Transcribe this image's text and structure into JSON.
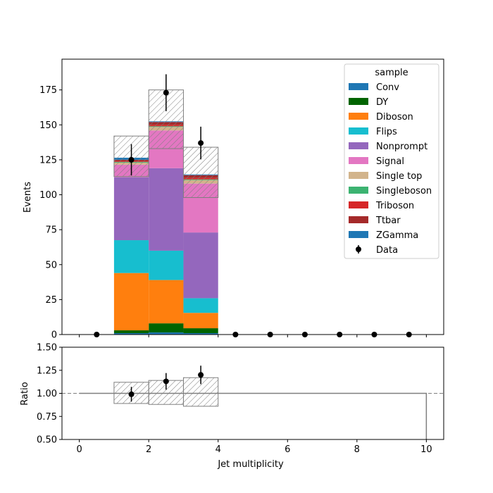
{
  "chart_data": [
    {
      "type": "bar",
      "stacked": true,
      "xlabel": "",
      "ylabel": "Events",
      "xlim": [
        -0.5,
        10.5
      ],
      "ylim": [
        0,
        197
      ],
      "bin_edges": [
        0,
        1,
        2,
        3,
        4,
        5,
        6,
        7,
        8,
        9,
        10
      ],
      "x_ticks": [
        0,
        2,
        4,
        6,
        8,
        10
      ],
      "y_ticks": [
        0,
        25,
        50,
        75,
        100,
        125,
        150,
        175
      ],
      "series": [
        {
          "name": "Conv",
          "color": "#1f77b4",
          "values": [
            0,
            1,
            1.5,
            1,
            0,
            0,
            0,
            0,
            0,
            0
          ]
        },
        {
          "name": "DY",
          "color": "#006400",
          "values": [
            0,
            2,
            6.5,
            3.5,
            0,
            0,
            0,
            0,
            0,
            0
          ]
        },
        {
          "name": "Diboson",
          "color": "#ff7f0e",
          "values": [
            0,
            41,
            31,
            11,
            0,
            0,
            0,
            0,
            0,
            0
          ]
        },
        {
          "name": "Flips",
          "color": "#17becf",
          "values": [
            0,
            23.5,
            21,
            10.5,
            0,
            0,
            0,
            0,
            0,
            0
          ]
        },
        {
          "name": "Nonprompt",
          "color": "#9467bd",
          "values": [
            0,
            45,
            59,
            47,
            0,
            0,
            0,
            0,
            0,
            0
          ]
        },
        {
          "name": "Signal",
          "color": "#e377c2",
          "values": [
            0,
            9,
            27,
            35,
            0,
            0,
            0,
            0,
            0,
            0
          ]
        },
        {
          "name": "Single top",
          "color": "#d2b48c",
          "values": [
            0,
            1.5,
            2.5,
            2.5,
            0,
            0,
            0,
            0,
            0,
            0
          ]
        },
        {
          "name": "Singleboson",
          "color": "#3cb371",
          "values": [
            0,
            0.5,
            0.5,
            0.5,
            0,
            0,
            0,
            0,
            0,
            0
          ]
        },
        {
          "name": "Triboson",
          "color": "#d62728",
          "values": [
            0,
            0.5,
            1,
            1,
            0,
            0,
            0,
            0,
            0,
            0
          ]
        },
        {
          "name": "Ttbar",
          "color": "#a52a2a",
          "values": [
            0,
            1,
            2,
            2,
            0,
            0,
            0,
            0,
            0,
            0
          ]
        },
        {
          "name": "ZGamma",
          "color": "#1f77b4",
          "values": [
            0,
            1.5,
            0.5,
            0.5,
            0,
            0,
            0,
            0,
            0,
            0
          ]
        }
      ],
      "uncertainty_band": {
        "low": [
          0,
          113,
          133,
          98,
          0,
          0,
          0,
          0,
          0,
          0
        ],
        "high": [
          0,
          142,
          175,
          134,
          0,
          0,
          0,
          0,
          0,
          0
        ]
      },
      "data_points": {
        "name": "Data",
        "x": [
          0.5,
          1.5,
          2.5,
          3.5,
          4.5,
          5.5,
          6.5,
          7.5,
          8.5,
          9.5
        ],
        "y": [
          0,
          125,
          173,
          137,
          0,
          0,
          0,
          0,
          0,
          0
        ],
        "err": [
          0,
          11.2,
          13.2,
          11.7,
          0,
          0,
          0,
          0,
          0,
          0
        ]
      },
      "legend": {
        "title": "sample",
        "placement": "upper-right"
      }
    },
    {
      "type": "scatter",
      "xlabel": "Jet multiplicity",
      "ylabel": "Ratio",
      "xlim": [
        -0.5,
        10.5
      ],
      "ylim": [
        0.5,
        1.5
      ],
      "x_ticks": [
        0,
        2,
        4,
        6,
        8,
        10
      ],
      "y_ticks": [
        0.5,
        0.75,
        1.0,
        1.25,
        1.5
      ],
      "reference_line": 1.0,
      "ratio_line": {
        "edges": [
          0,
          10
        ],
        "value": 1.0
      },
      "band": {
        "edges": [
          1,
          2,
          3,
          4
        ],
        "low": [
          0.89,
          0.88,
          0.86
        ],
        "high": [
          1.12,
          1.14,
          1.17
        ]
      },
      "points": {
        "x": [
          1.5,
          2.5,
          3.5
        ],
        "y": [
          0.99,
          1.13,
          1.2
        ],
        "err": [
          0.08,
          0.09,
          0.1
        ]
      }
    }
  ],
  "tick_text": {
    "main_y": [
      "0",
      "25",
      "50",
      "75",
      "100",
      "125",
      "150",
      "175"
    ],
    "ratio_y": [
      "0.50",
      "0.75",
      "1.00",
      "1.25",
      "1.50"
    ],
    "x": [
      "0",
      "2",
      "4",
      "6",
      "8",
      "10"
    ]
  }
}
